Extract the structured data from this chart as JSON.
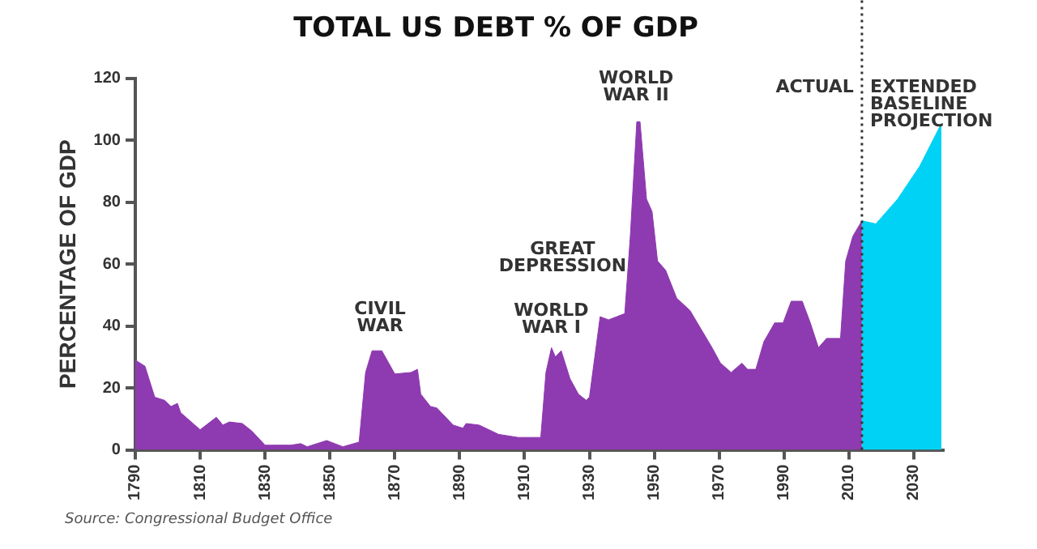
{
  "chart_data": {
    "type": "area",
    "title": "TOTAL US DEBT % OF GDP",
    "ylabel": "PERCENTAGE OF GDP",
    "xlim": [
      1790,
      2039
    ],
    "xticks": [
      1790,
      1810,
      1830,
      1850,
      1870,
      1890,
      1910,
      1930,
      1950,
      1970,
      1990,
      2010,
      2030
    ],
    "ylim": [
      0,
      120
    ],
    "yticks": [
      0,
      20,
      40,
      60,
      80,
      100,
      120
    ],
    "grid": false,
    "legend": false,
    "series": [
      {
        "color": "#8e3ab0",
        "x": [
          1790,
          1793,
          1796,
          1799,
          1801,
          1803,
          1804,
          1810,
          1815,
          1817,
          1819,
          1823,
          1826,
          1830,
          1838,
          1841,
          1843,
          1849,
          1854,
          1859,
          1861,
          1863,
          1866,
          1870,
          1875,
          1877,
          1878,
          1881,
          1883,
          1888,
          1891,
          1892,
          1896,
          1902,
          1908,
          1915,
          1916.6,
          1918.3,
          1919.5,
          1921.3,
          1924,
          1926.6,
          1929,
          1930,
          1933.3,
          1935.9,
          1938.4,
          1940.9,
          1942.6,
          1944.6,
          1945.6,
          1947.6,
          1949.3,
          1951,
          1953.5,
          1956.9,
          1961,
          1967.8,
          1970.4,
          1973.7,
          1977,
          1978.7,
          1981.3,
          1983.8,
          1987.1,
          1989.7,
          1992.2,
          1995.6,
          1998.1,
          2000.6,
          2003.1,
          2007.4,
          2009,
          2011.2,
          2014
        ],
        "values": [
          29,
          27,
          17,
          16,
          14,
          15,
          12,
          6.5,
          10.5,
          8,
          9,
          8.5,
          6,
          1.5,
          1.5,
          2,
          1,
          3,
          1,
          2.5,
          25,
          32,
          32,
          24.5,
          25,
          26,
          18,
          14,
          13.5,
          8,
          7,
          8.5,
          8,
          5,
          4,
          4,
          25,
          33,
          30,
          32,
          23,
          18,
          16,
          17,
          43,
          42,
          43,
          44,
          69,
          106,
          106,
          81,
          77,
          61,
          58,
          49,
          45,
          33,
          28,
          25,
          28,
          26,
          26,
          35,
          41,
          41,
          48,
          48,
          41,
          33,
          36,
          36,
          61,
          69,
          74
        ]
      },
      {
        "color": "#00d2f5",
        "x": [
          2014,
          2018.3,
          2025,
          2031.8,
          2038.5
        ],
        "values": [
          74,
          73,
          81,
          91.6,
          105.4
        ]
      }
    ],
    "ref_lines": [
      {
        "axis": "x",
        "value": 2014,
        "line_style": "dotted",
        "color": "#333333"
      }
    ],
    "annotations": [
      "CIVIL\nWAR",
      "WORLD\nWAR I",
      "GREAT\nDEPRESSION",
      "WORLD\nWAR II",
      "ACTUAL",
      "EXTENDED\nBASELINE\nPROJECTION",
      "Source: Congressional Budget Office"
    ]
  }
}
